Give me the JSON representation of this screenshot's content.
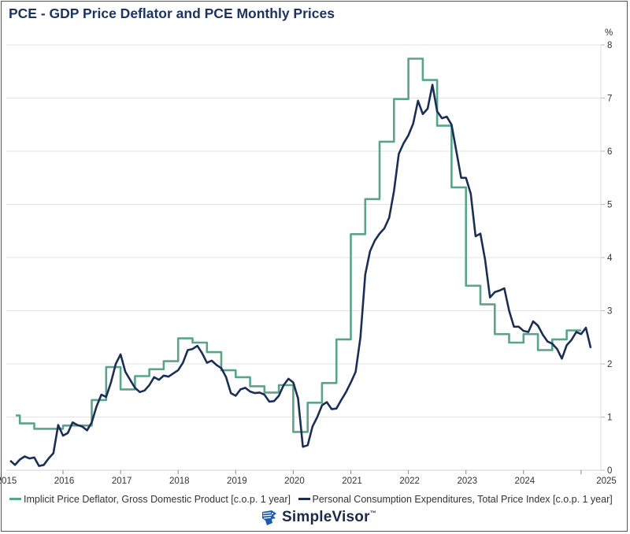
{
  "chart_data": {
    "type": "line",
    "title": "PCE - GDP Price Deflator and PCE Monthly Prices",
    "xlabel": "",
    "ylabel": "%",
    "ylim": [
      0,
      8
    ],
    "yticks": [
      "0",
      "1",
      "2",
      "3",
      "4",
      "5",
      "6",
      "7",
      "8"
    ],
    "xticks": [
      "2015",
      "2016",
      "2017",
      "2018",
      "2019",
      "2020",
      "2021",
      "2022",
      "2023",
      "2024",
      "2025"
    ],
    "grid": true,
    "legend_position": "bottom",
    "series": [
      {
        "name": "Implicit Price Deflator, Gross Domestic Product [c.o.p. 1 year]",
        "color": "#5aa48c",
        "frequency": "quarterly",
        "start": "2015-Q1",
        "values": [
          1.03,
          0.88,
          0.78,
          0.78,
          0.84,
          0.84,
          1.32,
          1.94,
          1.52,
          1.77,
          1.9,
          2.05,
          2.48,
          2.4,
          2.22,
          1.88,
          1.75,
          1.58,
          1.46,
          1.6,
          0.72,
          1.27,
          1.64,
          2.46,
          4.44,
          5.1,
          6.18,
          6.98,
          7.74,
          7.34,
          6.48,
          5.32,
          3.47,
          3.12,
          2.56,
          2.4,
          2.56,
          2.26,
          2.46,
          2.63
        ]
      },
      {
        "name": "Personal Consumption Expenditures, Total Price Index [c.o.p. 1 year]",
        "color": "#1b2f55",
        "frequency": "monthly",
        "start": "2015-02",
        "values": [
          0.18,
          0.1,
          0.2,
          0.26,
          0.22,
          0.24,
          0.08,
          0.1,
          0.22,
          0.32,
          0.85,
          0.65,
          0.7,
          0.9,
          0.85,
          0.82,
          0.75,
          0.9,
          1.2,
          1.42,
          1.38,
          1.65,
          2.0,
          2.18,
          1.85,
          1.7,
          1.55,
          1.47,
          1.5,
          1.6,
          1.75,
          1.7,
          1.78,
          1.76,
          1.82,
          1.88,
          2.02,
          2.26,
          2.28,
          2.34,
          2.2,
          2.02,
          2.06,
          1.98,
          1.92,
          1.75,
          1.45,
          1.4,
          1.52,
          1.55,
          1.48,
          1.45,
          1.46,
          1.42,
          1.29,
          1.3,
          1.4,
          1.6,
          1.72,
          1.65,
          1.35,
          0.44,
          0.47,
          0.82,
          1.0,
          1.22,
          1.28,
          1.15,
          1.16,
          1.32,
          1.47,
          1.65,
          1.85,
          2.5,
          3.68,
          4.12,
          4.32,
          4.45,
          4.55,
          4.75,
          5.25,
          5.95,
          6.15,
          6.3,
          6.52,
          6.95,
          6.7,
          6.8,
          7.25,
          6.75,
          6.62,
          6.65,
          6.5,
          6.0,
          5.5,
          5.5,
          5.2,
          4.4,
          4.45,
          3.95,
          3.25,
          3.35,
          3.38,
          3.42,
          3.0,
          2.7,
          2.7,
          2.62,
          2.6,
          2.8,
          2.72,
          2.55,
          2.42,
          2.38,
          2.28,
          2.1,
          2.35,
          2.45,
          2.6,
          2.56,
          2.68,
          2.3
        ]
      }
    ]
  },
  "legend": {
    "items": [
      {
        "label": "Implicit Price Deflator, Gross Domestic Product [c.o.p. 1 year]",
        "color": "#5aa48c"
      },
      {
        "label": "Personal Consumption Expenditures, Total Price Index [c.o.p. 1 year]",
        "color": "#1b2f55"
      }
    ]
  },
  "branding": {
    "logo_text": "SimpleVisor",
    "trademark": "™",
    "logo_icon": "eagle-head-icon"
  }
}
